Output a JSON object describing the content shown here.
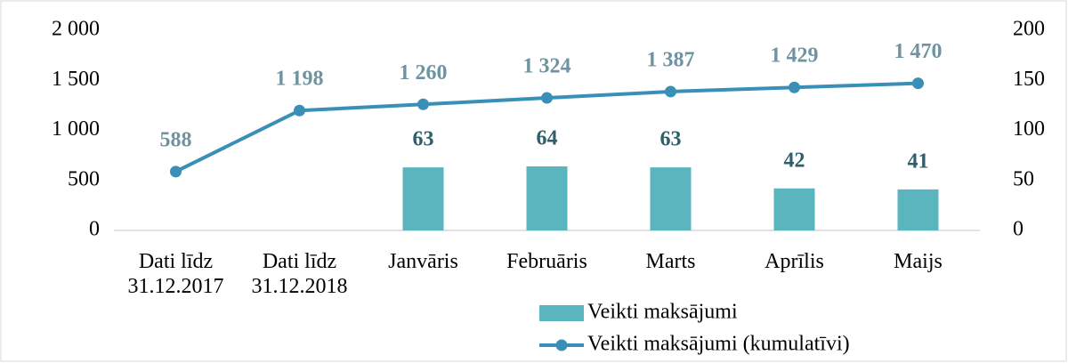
{
  "chart_data": {
    "type": "bar-line",
    "categories": [
      "Dati līdz 31.12.2017",
      "Dati līdz 31.12.2018",
      "Janvāris",
      "Februāris",
      "Marts",
      "Aprīlis",
      "Maijs"
    ],
    "series": [
      {
        "name": "Veikti maksājumi",
        "type": "bar",
        "axis": "y2",
        "color": "#5ab5bf",
        "values": [
          null,
          null,
          63,
          64,
          63,
          42,
          41
        ]
      },
      {
        "name": "Veikti maksājumi (kumulatīvi)",
        "type": "line",
        "axis": "y",
        "color": "#3a8fb7",
        "values": [
          588,
          1198,
          1260,
          1324,
          1387,
          1429,
          1470
        ],
        "value_labels": [
          "588",
          "1 198",
          "1 260",
          "1 324",
          "1 387",
          "1 429",
          "1 470"
        ]
      }
    ],
    "ylim": [
      0,
      2000
    ],
    "yticks": [
      0,
      500,
      {
        "value": 1000,
        "label": "1 000"
      },
      {
        "value": 1500,
        "label": "1 500"
      },
      {
        "value": 2000,
        "label": "2 000"
      }
    ],
    "y2lim": [
      0,
      200
    ],
    "y2ticks": [
      0,
      50,
      100,
      150,
      200
    ],
    "legend": "bottom",
    "grid": false
  }
}
